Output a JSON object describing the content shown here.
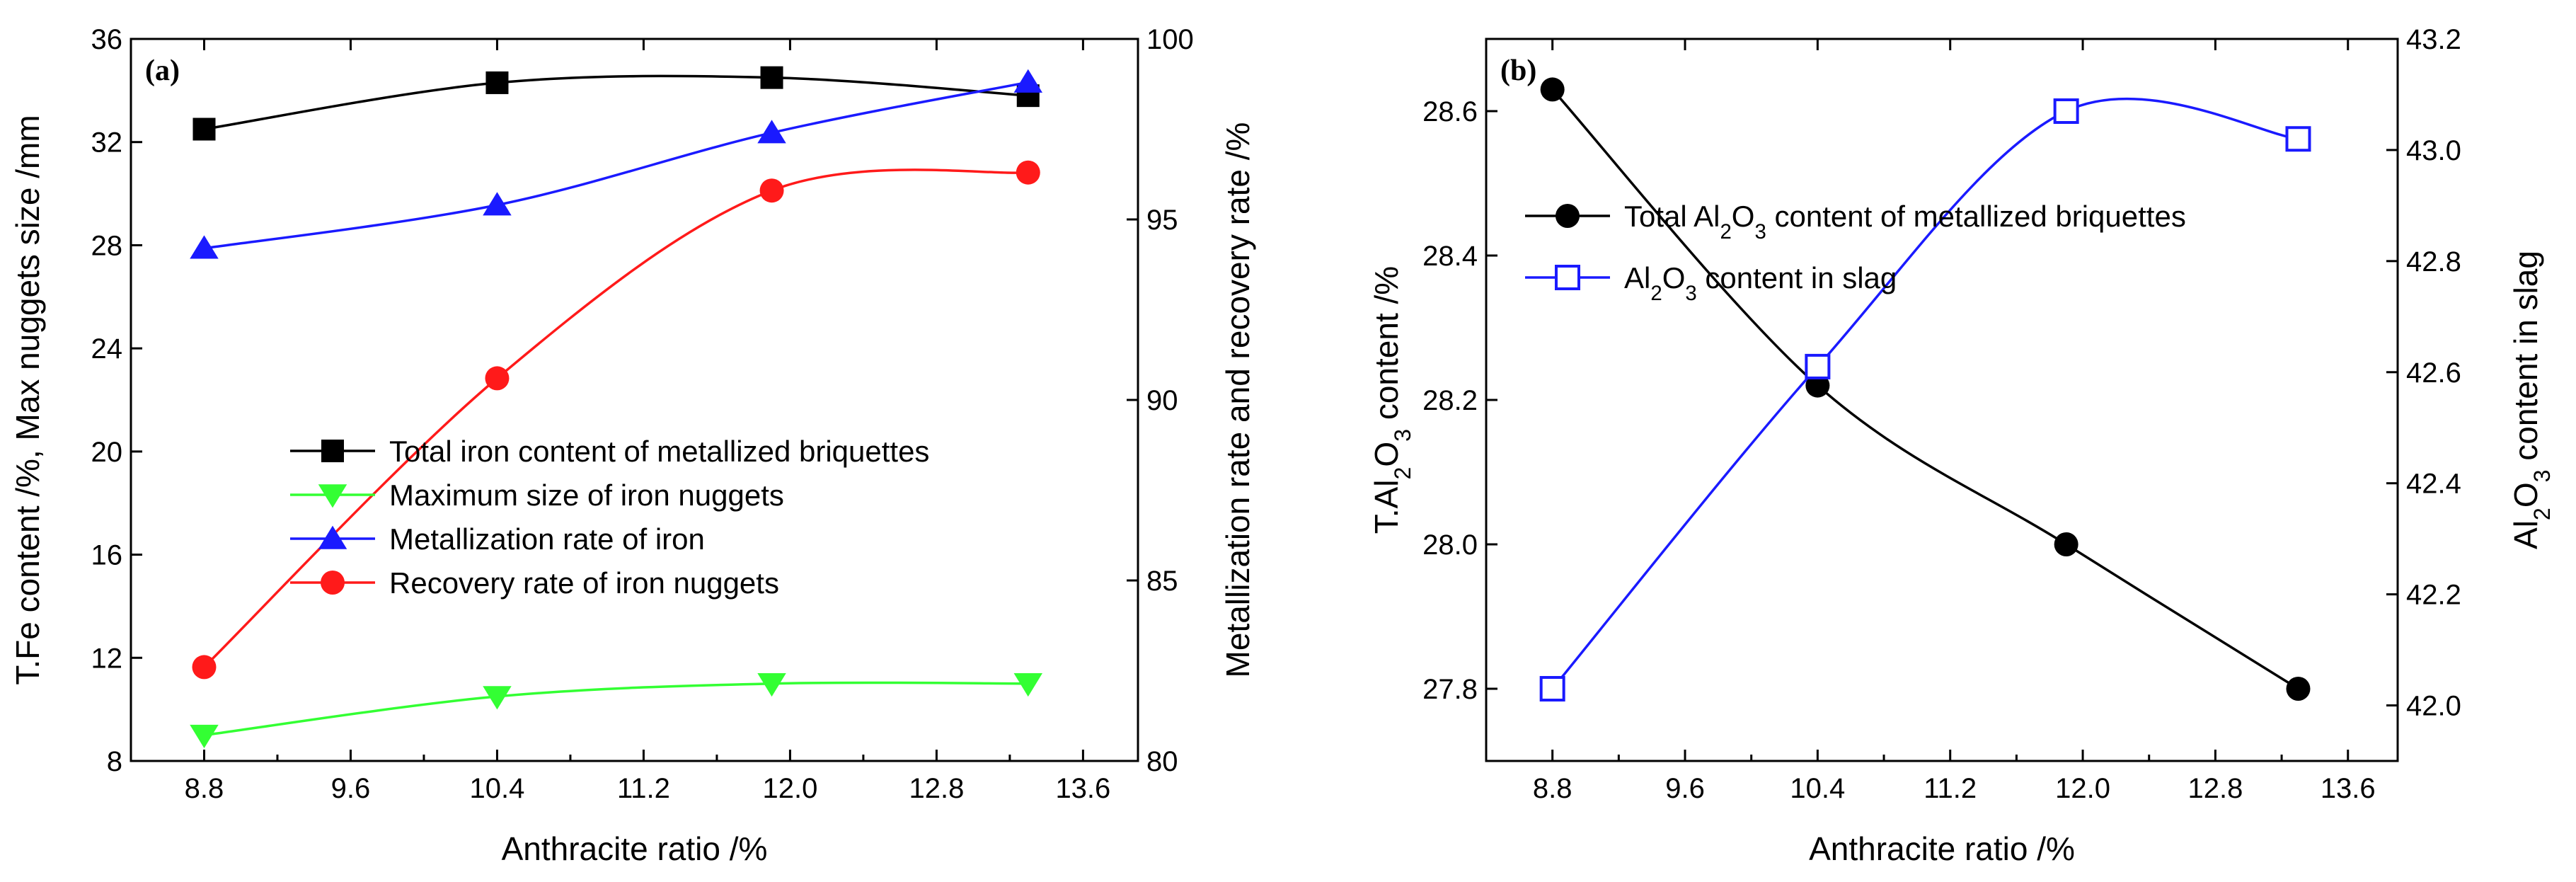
{
  "chart_data": [
    {
      "type": "line",
      "panel_label": "(a)",
      "xlabel": "Anthracite ratio /%",
      "ylabel_left": "T.Fe content /%, Max nuggets size /mm",
      "ylabel_right": "Metallization rate and recovery rate /%",
      "xlim": [
        8.4,
        13.9
      ],
      "ylim_left": [
        8,
        36
      ],
      "ylim_right": [
        80,
        100
      ],
      "x_ticks": [
        "8.8",
        "9.6",
        "10.4",
        "11.2",
        "12.0",
        "12.8",
        "13.6"
      ],
      "y_ticks_left": [
        "8",
        "12",
        "16",
        "20",
        "24",
        "28",
        "32",
        "36"
      ],
      "y_ticks_right": [
        "80",
        "85",
        "90",
        "95",
        "100"
      ],
      "legend_position": "center",
      "series": [
        {
          "name": "Total iron content of metallized briquettes",
          "axis": "left",
          "marker": "square",
          "color": "#000000",
          "x": [
            8.8,
            10.4,
            11.9,
            13.3
          ],
          "values": [
            32.5,
            34.3,
            34.5,
            33.8
          ]
        },
        {
          "name": "Maximum size of iron nuggets",
          "axis": "left",
          "marker": "triangle-down",
          "color": "#33ff33",
          "x": [
            8.8,
            10.4,
            11.9,
            13.3
          ],
          "values": [
            9.0,
            10.5,
            11.0,
            11.0
          ]
        },
        {
          "name": "Metallization rate of iron",
          "axis": "right",
          "marker": "triangle-up",
          "color": "#1a1aff",
          "x": [
            8.8,
            10.4,
            11.9,
            13.3
          ],
          "values": [
            94.2,
            95.4,
            97.4,
            98.8
          ]
        },
        {
          "name": "Recovery rate of iron nuggets",
          "axis": "right",
          "marker": "circle",
          "color": "#ff1a1a",
          "x": [
            8.8,
            10.4,
            11.9,
            13.3
          ],
          "values": [
            82.6,
            90.6,
            95.8,
            96.3
          ]
        }
      ]
    },
    {
      "type": "line",
      "panel_label": "(b)",
      "xlabel": "Anthracite ratio /%",
      "ylabel_left": "T.Al2O3 content /%",
      "ylabel_right": "Al2O3 content in slag",
      "xlim": [
        8.4,
        13.9
      ],
      "ylim_left": [
        27.7,
        28.7
      ],
      "ylim_right": [
        41.9,
        43.2
      ],
      "x_ticks": [
        "8.8",
        "9.6",
        "10.4",
        "11.2",
        "12.0",
        "12.8",
        "13.6"
      ],
      "y_ticks_left": [
        "27.8",
        "28.0",
        "28.2",
        "28.4",
        "28.6"
      ],
      "y_ticks_right": [
        "42.0",
        "42.2",
        "42.4",
        "42.6",
        "42.8",
        "43.0",
        "43.2"
      ],
      "legend_position": "top-left",
      "series": [
        {
          "name": "Total Al2O3 content of metallized briquettes",
          "axis": "left",
          "marker": "circle",
          "color": "#000000",
          "x": [
            8.8,
            10.4,
            11.9,
            13.3
          ],
          "values": [
            28.63,
            28.22,
            28.0,
            27.8
          ]
        },
        {
          "name": "Al2O3 content in slag",
          "axis": "right",
          "marker": "open-square",
          "color": "#1a1aff",
          "x": [
            8.8,
            10.4,
            11.9,
            13.3
          ],
          "values": [
            42.03,
            42.61,
            43.07,
            43.02
          ]
        }
      ]
    }
  ]
}
